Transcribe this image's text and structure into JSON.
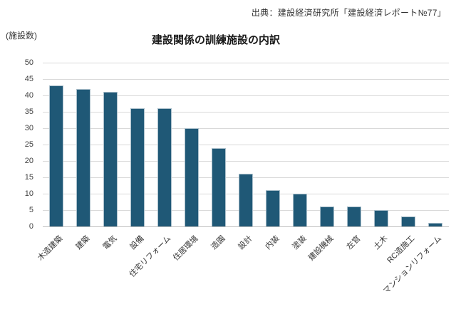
{
  "source_caption": "出典：建設経済研究所「建設経済レポート№77」",
  "chart_data": {
    "type": "bar",
    "title": "建設関係の訓練施設の内訳",
    "unit_label": "(施設数)",
    "categories": [
      "木造建築",
      "建築",
      "電気",
      "設備",
      "住宅リフォーム",
      "住居環境",
      "造園",
      "設計",
      "内装",
      "塗装",
      "建設機械",
      "左官",
      "土木",
      "RC造施工",
      "マンションリフォーム"
    ],
    "values": [
      43,
      42,
      41,
      36,
      36,
      30,
      24,
      16,
      11,
      10,
      6,
      6,
      5,
      3,
      1
    ],
    "xlabel": "",
    "ylabel": "(施設数)",
    "ylim": [
      0,
      50
    ],
    "ytick_step": 5,
    "grid": true,
    "legend_position": "none",
    "bar_color": "#1f5876",
    "bar_border_color": "#aabfcb",
    "gridline_color": "#d9d9d9",
    "axis_line_color": "#bfbfbf",
    "text_color": "#404040"
  }
}
